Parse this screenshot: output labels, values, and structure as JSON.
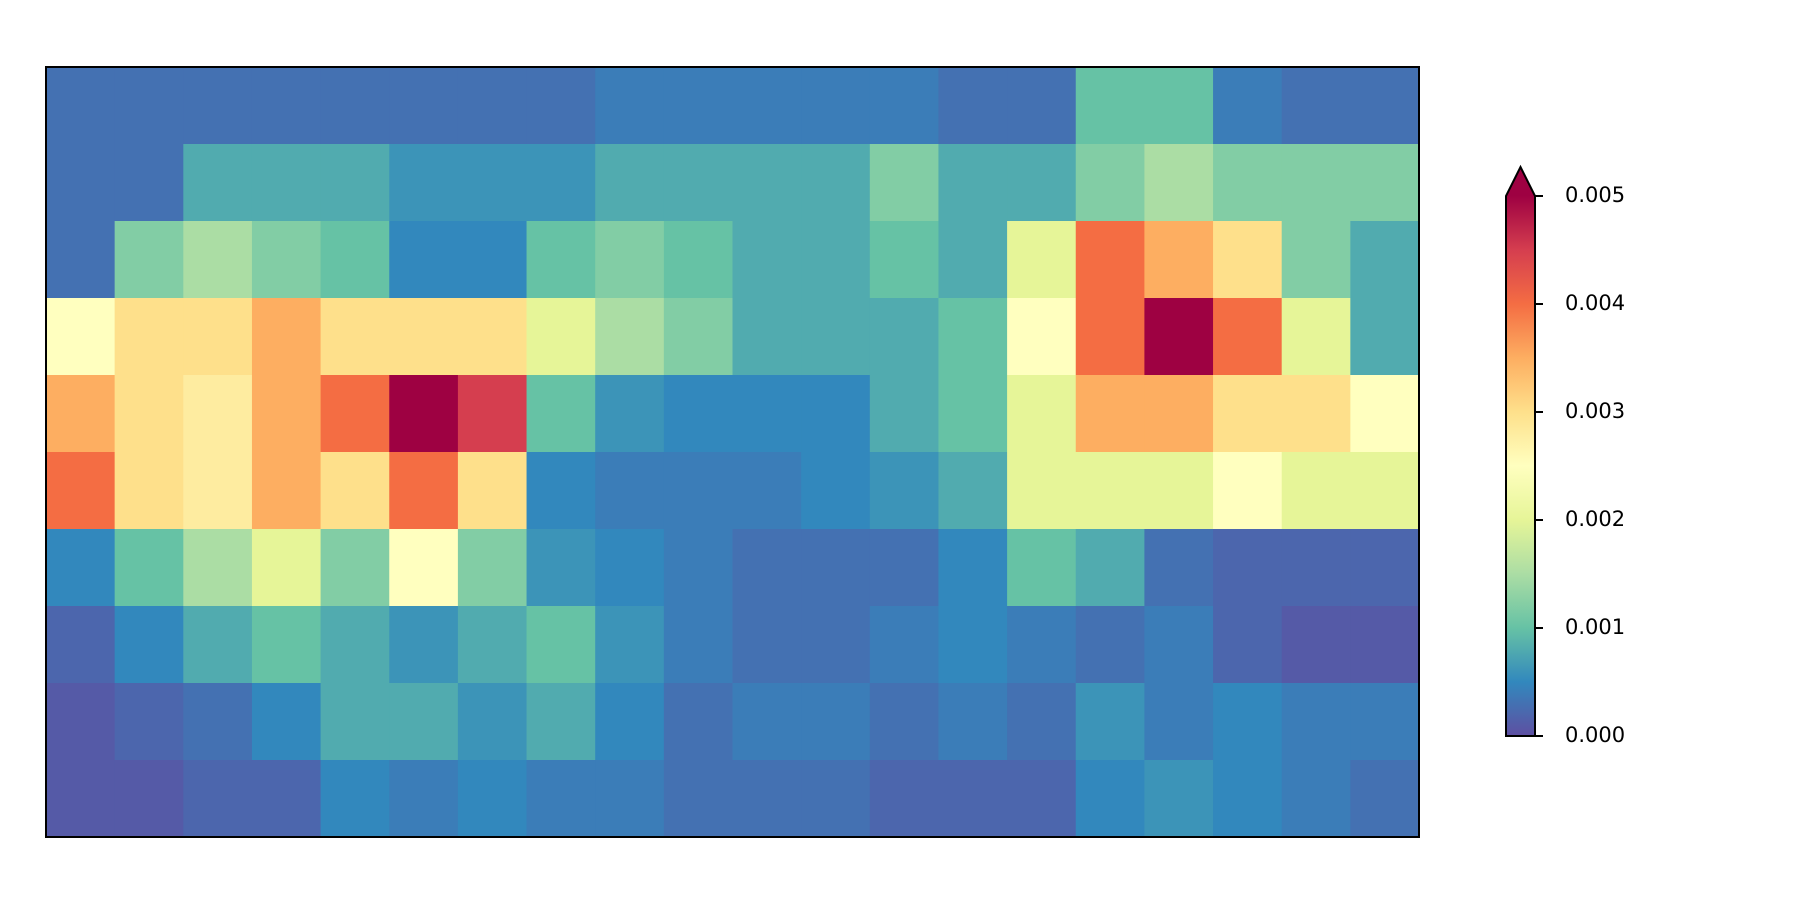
{
  "chart_data": {
    "type": "heatmap",
    "colormap": [
      "#5e4fa2",
      "#3288bd",
      "#66c2a5",
      "#abdda4",
      "#e6f598",
      "#ffffbf",
      "#fee08b",
      "#fdae61",
      "#f46d43",
      "#d53e4f",
      "#9e0142"
    ],
    "clim": [
      0,
      0.005
    ],
    "extend": "max",
    "colorbar_ticks": [
      {
        "value": 0,
        "label": "0.000"
      },
      0.001,
      0.002,
      0.003,
      0.004,
      0.005
    ],
    "z": [
      [
        0.0003,
        0.0003,
        0.0003,
        0.0003,
        0.0003,
        0.0003,
        0.0003,
        0.0003,
        0.0004,
        0.0004,
        0.0004,
        0.0004,
        0.0004,
        0.0003,
        0.0003,
        0.001,
        0.001,
        0.0004,
        0.0003,
        0.0003
      ],
      [
        0.0003,
        0.0003,
        0.0008,
        0.0008,
        0.0008,
        0.0006,
        0.0006,
        0.0006,
        0.0008,
        0.0008,
        0.0008,
        0.0008,
        0.0012,
        0.0008,
        0.0008,
        0.0012,
        0.0015,
        0.0012,
        0.0012,
        0.0012
      ],
      [
        0.0003,
        0.0012,
        0.0015,
        0.0012,
        0.001,
        0.0005,
        0.0005,
        0.001,
        0.0012,
        0.001,
        0.0008,
        0.0008,
        0.001,
        0.0008,
        0.002,
        0.004,
        0.0035,
        0.003,
        0.0012,
        0.0008
      ],
      [
        0.0025,
        0.003,
        0.003,
        0.0035,
        0.003,
        0.003,
        0.003,
        0.002,
        0.0015,
        0.0012,
        0.0008,
        0.0008,
        0.0008,
        0.001,
        0.0025,
        0.004,
        0.005,
        0.004,
        0.002,
        0.0008
      ],
      [
        0.0035,
        0.003,
        0.0028,
        0.0035,
        0.004,
        0.005,
        0.0045,
        0.001,
        0.0006,
        0.0005,
        0.0005,
        0.0005,
        0.0008,
        0.001,
        0.002,
        0.0035,
        0.0035,
        0.003,
        0.003,
        0.0025
      ],
      [
        0.004,
        0.003,
        0.0028,
        0.0035,
        0.003,
        0.004,
        0.003,
        0.0005,
        0.0004,
        0.0004,
        0.0004,
        0.0005,
        0.0006,
        0.0008,
        0.002,
        0.002,
        0.002,
        0.0025,
        0.002,
        0.002
      ],
      [
        0.0005,
        0.001,
        0.0015,
        0.002,
        0.0012,
        0.0025,
        0.0012,
        0.0006,
        0.0005,
        0.0004,
        0.0003,
        0.0003,
        0.0003,
        0.0005,
        0.001,
        0.0008,
        0.0003,
        0.0002,
        0.0002,
        0.0002
      ],
      [
        0.0002,
        0.0005,
        0.0008,
        0.001,
        0.0008,
        0.0006,
        0.0008,
        0.001,
        0.0006,
        0.0004,
        0.0003,
        0.0003,
        0.0004,
        0.0005,
        0.0004,
        0.0003,
        0.0004,
        0.0002,
        0.0001,
        0.0001
      ],
      [
        0.0001,
        0.0002,
        0.0003,
        0.0005,
        0.0008,
        0.0008,
        0.0006,
        0.0008,
        0.0005,
        0.0003,
        0.0004,
        0.0004,
        0.0003,
        0.0004,
        0.0003,
        0.0006,
        0.0004,
        0.0005,
        0.0004,
        0.0004
      ],
      [
        0.0001,
        0.0001,
        0.0002,
        0.0002,
        0.0005,
        0.0004,
        0.0005,
        0.0004,
        0.0004,
        0.0003,
        0.0003,
        0.0003,
        0.0002,
        0.0002,
        0.0002,
        0.0005,
        0.0006,
        0.0005,
        0.0004,
        0.0003
      ]
    ]
  }
}
